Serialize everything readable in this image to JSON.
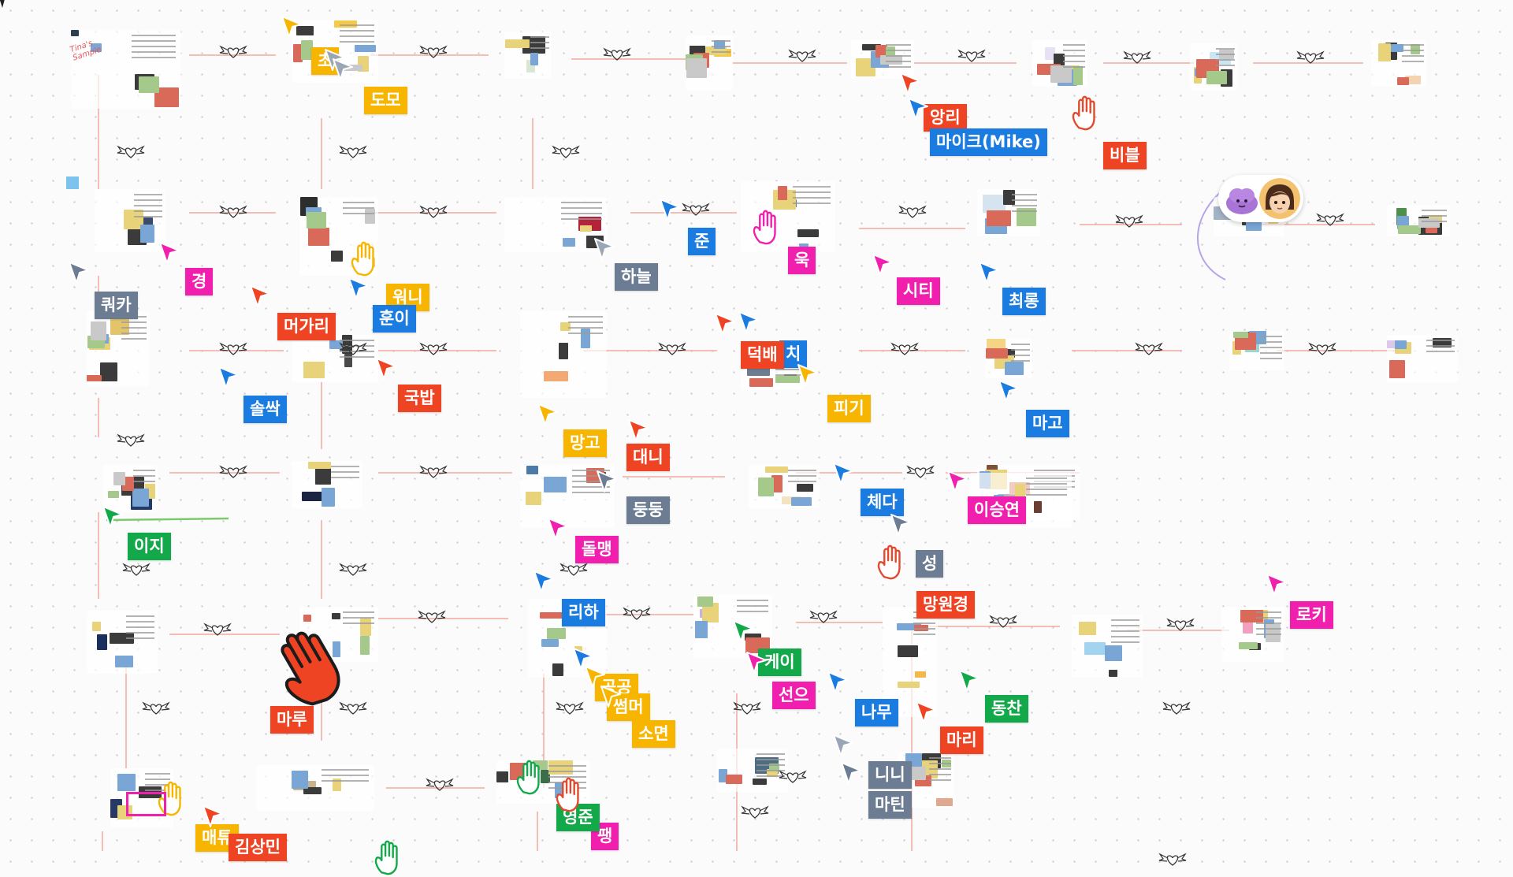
{
  "board": {
    "canvas_color": "#fbfbfb",
    "connector_color": "#f2aaa0"
  },
  "frame_text": {
    "tina_sample": "Tina's Sample"
  },
  "collaborators": [
    {
      "name": "도모",
      "color": "#f7b500"
    },
    {
      "name": "앙리",
      "color": "#ef4423"
    },
    {
      "name": "마이크(Mike)",
      "color": "#1a7ce0"
    },
    {
      "name": "비블",
      "color": "#ef4423"
    },
    {
      "name": "경",
      "color": "#f01fae"
    },
    {
      "name": "쿼카",
      "color": "#6b7c93"
    },
    {
      "name": "머가리",
      "color": "#ef4423"
    },
    {
      "name": "워니",
      "color": "#f7b500"
    },
    {
      "name": "훈이",
      "color": "#1a7ce0"
    },
    {
      "name": "하늘",
      "color": "#6b7c93"
    },
    {
      "name": "준",
      "color": "#1a7ce0"
    },
    {
      "name": "욱",
      "color": "#f01fae"
    },
    {
      "name": "시티",
      "color": "#f01fae"
    },
    {
      "name": "최롱",
      "color": "#1a7ce0"
    },
    {
      "name": "솔싹",
      "color": "#1a7ce0"
    },
    {
      "name": "국밥",
      "color": "#ef4423"
    },
    {
      "name": "덕배",
      "color": "#ef4423"
    },
    {
      "name": "피기",
      "color": "#f7b500"
    },
    {
      "name": "마고",
      "color": "#1a7ce0"
    },
    {
      "name": "망고",
      "color": "#f7b500"
    },
    {
      "name": "대니",
      "color": "#ef4423"
    },
    {
      "name": "둥둥",
      "color": "#6b7c93"
    },
    {
      "name": "체다",
      "color": "#1a7ce0"
    },
    {
      "name": "이승연",
      "color": "#f01fae"
    },
    {
      "name": "이지",
      "color": "#13a84a"
    },
    {
      "name": "돌맹",
      "color": "#f01fae"
    },
    {
      "name": "성",
      "color": "#6b7c93"
    },
    {
      "name": "리하",
      "color": "#1a7ce0"
    },
    {
      "name": "망원경",
      "color": "#ef4423"
    },
    {
      "name": "로키",
      "color": "#f01fae"
    },
    {
      "name": "케이",
      "color": "#13a84a"
    },
    {
      "name": "선으",
      "color": "#f01fae"
    },
    {
      "name": "썸머",
      "color": "#f7b500"
    },
    {
      "name": "소면",
      "color": "#f7b500"
    },
    {
      "name": "나무",
      "color": "#1a7ce0"
    },
    {
      "name": "동찬",
      "color": "#13a84a"
    },
    {
      "name": "마루",
      "color": "#ef4423"
    },
    {
      "name": "마리",
      "color": "#ef4423"
    },
    {
      "name": "니니",
      "color": "#6b7c93"
    },
    {
      "name": "마틴",
      "color": "#6b7c93"
    },
    {
      "name": "영준",
      "color": "#13a84a"
    },
    {
      "name": "매튜",
      "color": "#f7b500"
    },
    {
      "name": "김상민",
      "color": "#ef4423"
    }
  ],
  "partial_labels": {
    "cho": "초",
    "chi": "치",
    "gonggong": "공공",
    "paeng": "팽"
  },
  "icons": {
    "cursor": "pointer-cursor-icon",
    "hand": "grab-hand-icon",
    "avatars": "avatar-group"
  }
}
